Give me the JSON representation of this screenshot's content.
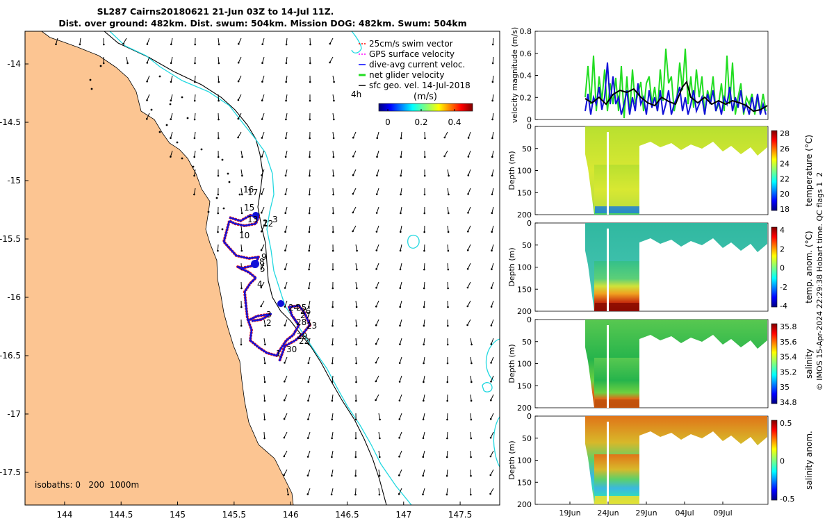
{
  "title": {
    "line1": "SL287 Cairns20180621 21-Jun 03Z to 14-Jul 11Z.",
    "line2": "Dist. over ground: 482km. Dist. swum: 504km. Mission DOG: 482km. Swum: 504km"
  },
  "map": {
    "x_ticks": [
      144,
      144.5,
      145,
      145.5,
      146,
      146.5,
      147,
      147.5
    ],
    "y_ticks": [
      -14,
      -14.5,
      -15,
      -15.5,
      -16,
      -16.5,
      -17,
      -17.5
    ],
    "x_range": [
      143.65,
      147.85
    ],
    "y_range": [
      -17.78,
      -13.72
    ],
    "isobaths_label": "isobaths: 0   200  1000m",
    "legend": {
      "items": [
        {
          "label": "25cm/s swim vector",
          "color": "#ff0000"
        },
        {
          "label": "GPS surface velocity",
          "color": "#ff00ff"
        },
        {
          "label": "dive-avg current veloc.",
          "color": "#0000ff"
        },
        {
          "label": "net glider velocity",
          "color": "#22dd22"
        },
        {
          "label": "sfc geo. vel. 14-Jul-2018",
          "color": "#000000"
        }
      ],
      "time_label": "4h",
      "colorbar_title": "(m/s)",
      "colorbar_ticks": [
        "0",
        "0.2",
        "0.4"
      ]
    },
    "track_labels": [
      "16",
      "17",
      "15",
      "13",
      "12",
      "3",
      "2",
      "10",
      "9",
      "8",
      "5",
      "4",
      "3",
      "2",
      "1",
      "24",
      "25",
      "26",
      "27",
      "28",
      "23",
      "29",
      "22",
      "30"
    ]
  },
  "panels": {
    "date_ticks": [
      "19Jun",
      "24Jun",
      "29Jun",
      "04Jul",
      "09Jul"
    ],
    "velocity": {
      "ylabel": "velocity magnitude (m/s)",
      "y_ticks": [
        "0",
        "0.2",
        "0.4",
        "0.6",
        "0.8"
      ]
    },
    "depth_ylabel": "Depth (m)",
    "depth_ticks": [
      "0",
      "50",
      "100",
      "150",
      "200"
    ],
    "temperature": {
      "label": "temperature (°C)",
      "ticks": [
        "18",
        "20",
        "22",
        "24",
        "26",
        "28"
      ]
    },
    "temp_anom": {
      "label": "temp. anom. (°C)",
      "ticks": [
        "-4",
        "-2",
        "0",
        "2",
        "4"
      ]
    },
    "salinity": {
      "label": "salinity",
      "ticks": [
        "34.8",
        "35",
        "35.2",
        "35.4",
        "35.6",
        "35.8"
      ]
    },
    "sal_anom": {
      "label": "salinity anom.",
      "ticks": [
        "-0.5",
        "0",
        "0.5"
      ]
    },
    "side_note": "© IMOS 15-Apr-2024 22:29:38 Hobart time. QC flags 1  2"
  }
}
